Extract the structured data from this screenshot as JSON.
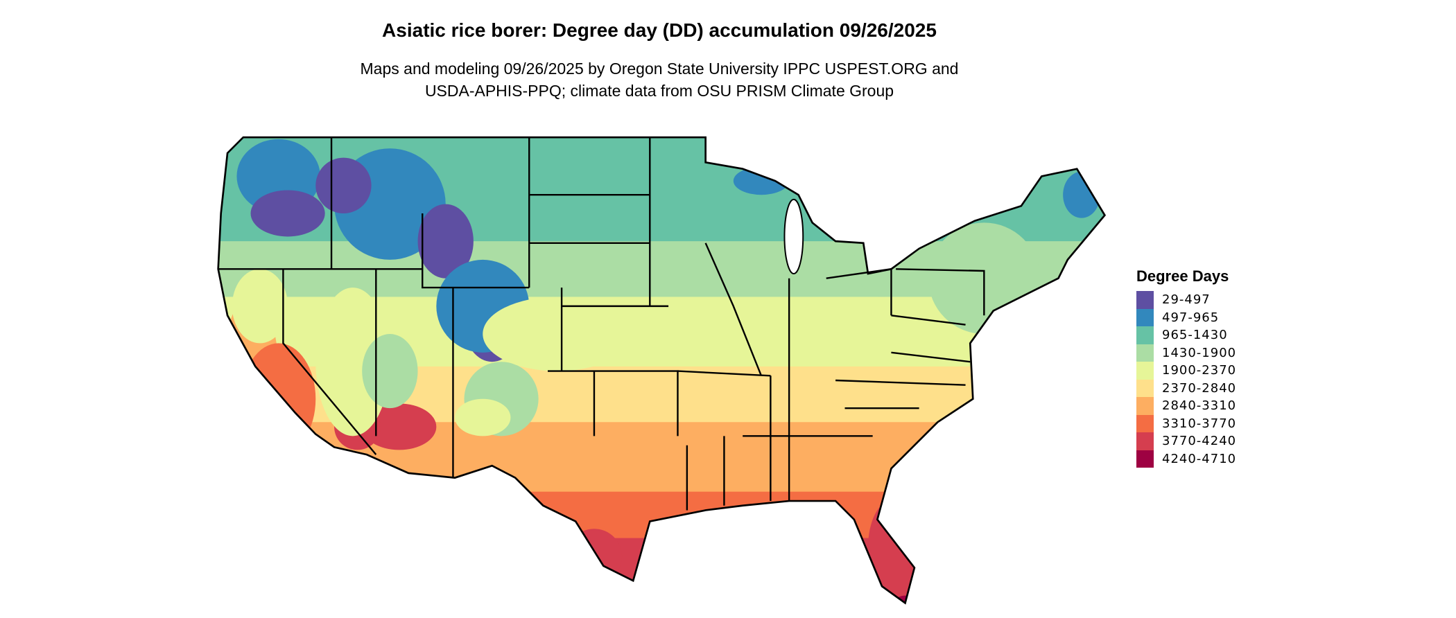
{
  "title": "Asiatic rice borer: Degree day (DD) accumulation 09/26/2025",
  "subtitle_lines": [
    "Maps and modeling 09/26/2025 by Oregon State University IPPC USPEST.ORG and",
    "USDA-APHIS-PPQ; climate data from OSU PRISM Climate Group"
  ],
  "legend": {
    "title": "Degree Days",
    "items": [
      {
        "label": "29-497",
        "color": "#5E4FA2"
      },
      {
        "label": "497-965",
        "color": "#3288BD"
      },
      {
        "label": "965-1430",
        "color": "#66C2A5"
      },
      {
        "label": "1430-1900",
        "color": "#ABDDA4"
      },
      {
        "label": "1900-2370",
        "color": "#E6F598"
      },
      {
        "label": "2370-2840",
        "color": "#FEE08B"
      },
      {
        "label": "2840-3310",
        "color": "#FDAE61"
      },
      {
        "label": "3310-3770",
        "color": "#F46D43"
      },
      {
        "label": "3770-4240",
        "color": "#D53E4F"
      },
      {
        "label": "4240-4710",
        "color": "#9E0142"
      }
    ]
  }
}
